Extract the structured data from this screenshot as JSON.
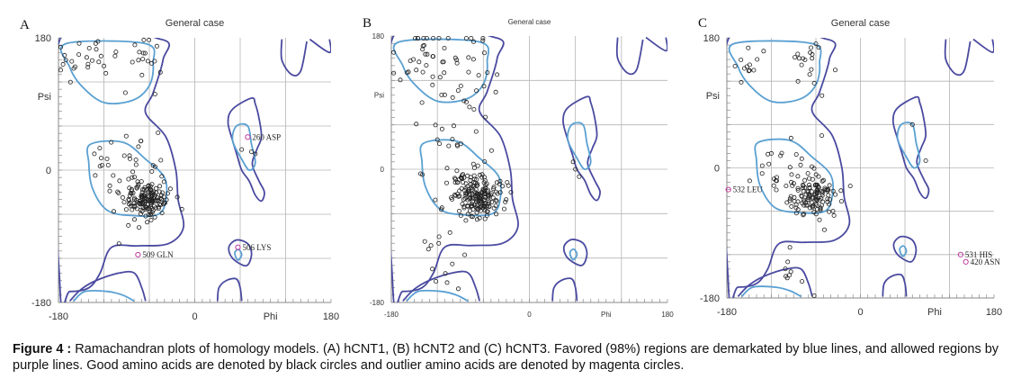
{
  "caption": {
    "lead": "Figure 4 :",
    "text": " Ramachandran plots of homology models. (A) hCNT1, (B) hCNT2 and (C) hCNT3. Favored (98%) regions are demarkated by blue lines, and allowed regions by purple lines. Good amino acids are denoted by black circles and outlier amino acids are denoted by magenta circles."
  },
  "colors": {
    "favored": "#5aa0d2",
    "allowed": "#4a4aa0",
    "grid": "#b4b4b4",
    "good": "#222222",
    "outlier": "#c0399f"
  },
  "chart_data": [
    {
      "type": "scatter",
      "panel": "A",
      "title": "General case",
      "xlabel": "Phi",
      "ylabel": "Psi",
      "xlim": [
        -180,
        180
      ],
      "ylim": [
        -180,
        180
      ],
      "x_ticks": [
        "-180",
        "0",
        "180"
      ],
      "y_ticks": [
        "180",
        "0",
        "-180"
      ],
      "grid": true,
      "outliers": [
        {
          "label": "260 ASP",
          "phi": 70,
          "psi": 45
        },
        {
          "label": "506 LYS",
          "phi": 57,
          "psi": -105
        },
        {
          "label": "509 GLN",
          "phi": -75,
          "psi": -115
        }
      ],
      "core": {
        "phi": -62,
        "psi": -40,
        "sphi": 14,
        "spsi": 13,
        "n": 150
      },
      "scatter": [
        {
          "phi": -150,
          "psi": 150,
          "sphi": 20,
          "spsi": 22,
          "n": 24
        },
        {
          "phi": -70,
          "psi": 145,
          "sphi": 15,
          "spsi": 25,
          "n": 18
        },
        {
          "phi": -120,
          "psi": 10,
          "sphi": 10,
          "spsi": 15,
          "n": 8
        },
        {
          "phi": -80,
          "psi": -5,
          "sphi": 25,
          "spsi": 25,
          "n": 30
        }
      ],
      "fixed": [
        [
          62,
          28
        ],
        [
          75,
          25
        ],
        [
          80,
          22
        ],
        [
          -80,
          -45
        ],
        [
          -100,
          -100
        ]
      ]
    },
    {
      "type": "scatter",
      "panel": "B",
      "title": "General case",
      "xlabel": "Phi",
      "ylabel": "Psi",
      "xlim": [
        -180,
        180
      ],
      "ylim": [
        -180,
        180
      ],
      "x_ticks": [
        "-180",
        "0",
        "Phi",
        "180"
      ],
      "y_ticks": [
        "180",
        "Psi",
        "0",
        "-180"
      ],
      "grid": true,
      "outliers": [],
      "core": {
        "phi": -65,
        "psi": -38,
        "sphi": 15,
        "spsi": 14,
        "n": 170
      },
      "scatter": [
        {
          "phi": -120,
          "psi": 145,
          "sphi": 25,
          "spsi": 25,
          "n": 40
        },
        {
          "phi": -70,
          "psi": 135,
          "sphi": 15,
          "spsi": 30,
          "n": 20
        },
        {
          "phi": -90,
          "psi": 0,
          "sphi": 25,
          "spsi": 30,
          "n": 40
        },
        {
          "phi": -110,
          "psi": -120,
          "sphi": 20,
          "spsi": 30,
          "n": 12
        }
      ],
      "fixed": [
        [
          60,
          0
        ],
        [
          65,
          -10
        ],
        [
          57,
          10
        ],
        [
          -140,
          90
        ],
        [
          -120,
          40
        ]
      ]
    },
    {
      "type": "scatter",
      "panel": "C",
      "title": "General case",
      "xlabel": "Phi",
      "ylabel": "Psi",
      "xlim": [
        -180,
        180
      ],
      "ylim": [
        -180,
        180
      ],
      "x_ticks": [
        "-180",
        "0",
        "Phi",
        "180"
      ],
      "y_ticks": [
        "180",
        "Psi",
        "0",
        "-180"
      ],
      "grid": true,
      "outliers": [
        {
          "label": "532 LEU",
          "phi": -178,
          "psi": -30
        },
        {
          "label": "531 HIS",
          "phi": 135,
          "psi": -120
        },
        {
          "label": "420 ASN",
          "phi": 142,
          "psi": -130
        }
      ],
      "core": {
        "phi": -65,
        "psi": -40,
        "sphi": 16,
        "spsi": 14,
        "n": 120
      },
      "scatter": [
        {
          "phi": -150,
          "psi": 150,
          "sphi": 15,
          "spsi": 15,
          "n": 12
        },
        {
          "phi": -70,
          "psi": 140,
          "sphi": 20,
          "spsi": 25,
          "n": 18
        },
        {
          "phi": -100,
          "psi": 0,
          "sphi": 25,
          "spsi": 25,
          "n": 25
        },
        {
          "phi": -100,
          "psi": -130,
          "sphi": 20,
          "spsi": 25,
          "n": 8
        }
      ],
      "fixed": [
        [
          70,
          60
        ],
        [
          88,
          10
        ],
        [
          -95,
          -110
        ],
        [
          -120,
          20
        ]
      ]
    }
  ]
}
